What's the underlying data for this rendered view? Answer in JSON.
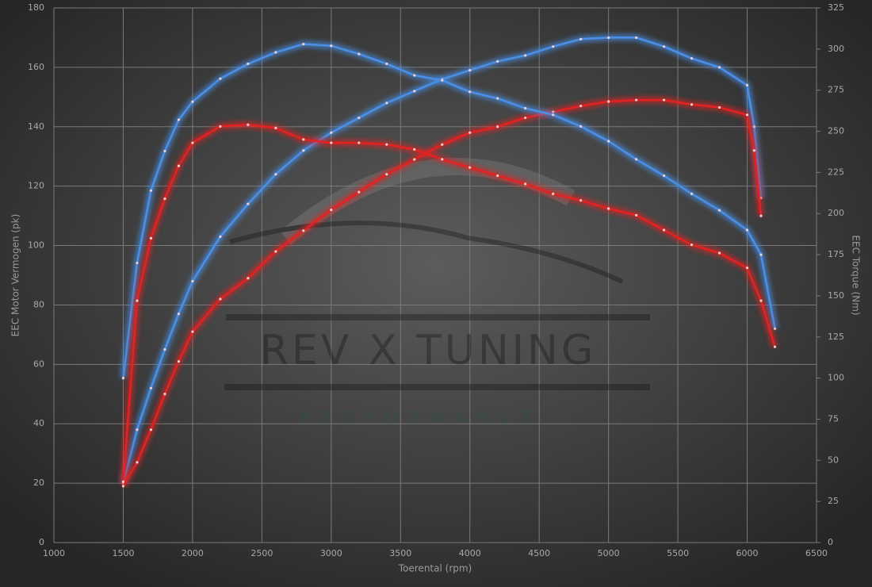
{
  "chart_data": {
    "type": "line",
    "xlabel": "Toerental (rpm)",
    "ylabel": "EEC Motor Vermogen (pk)",
    "y2label": "EEC Torque (Nm)",
    "watermark": {
      "text": "REV X TUNING",
      "subtext": "PERFORMANCE"
    },
    "xlim": [
      1000,
      6500
    ],
    "xticks": [
      1000,
      1500,
      2000,
      2500,
      3000,
      3500,
      4000,
      4500,
      5000,
      5500,
      6000,
      6500
    ],
    "ylim": [
      0,
      180
    ],
    "yticks": [
      0,
      20,
      40,
      60,
      80,
      100,
      120,
      140,
      160,
      180
    ],
    "y2lim": [
      0,
      325
    ],
    "y2ticks": [
      0,
      25,
      50,
      75,
      100,
      125,
      150,
      175,
      200,
      225,
      250,
      275,
      300,
      325
    ],
    "grid": true,
    "series": [
      {
        "color": "#4a90e8",
        "axis": "y",
        "x": [
          1500,
          1600,
          1700,
          1800,
          1900,
          2000,
          2200,
          2400,
          2600,
          2800,
          3000,
          3200,
          3400,
          3600,
          3800,
          4000,
          4200,
          4400,
          4600,
          4800,
          5000,
          5200,
          5400,
          5600,
          5800,
          6000,
          6050,
          6100
        ],
        "values": [
          20,
          38,
          52,
          65,
          77,
          88,
          103,
          114,
          124,
          132,
          138,
          143,
          148,
          152,
          156,
          159,
          162,
          164,
          167,
          169.5,
          170,
          170,
          167,
          163,
          160,
          154,
          140,
          116
        ]
      },
      {
        "color": "#e42222",
        "axis": "y",
        "x": [
          1500,
          1600,
          1700,
          1800,
          1900,
          2000,
          2200,
          2400,
          2600,
          2800,
          3000,
          3200,
          3400,
          3600,
          3800,
          4000,
          4200,
          4400,
          4600,
          4800,
          5000,
          5200,
          5400,
          5600,
          5800,
          6000,
          6050,
          6100
        ],
        "values": [
          19,
          27,
          38,
          50,
          61,
          71,
          82,
          89,
          98,
          105,
          112,
          118,
          124,
          129,
          134,
          138,
          140,
          143,
          145,
          147,
          148.5,
          149,
          149,
          147.5,
          146.5,
          144,
          132,
          110
        ]
      },
      {
        "color": "#4a90e8",
        "axis": "y2",
        "x": [
          1500,
          1600,
          1700,
          1800,
          1900,
          2000,
          2200,
          2400,
          2600,
          2800,
          3000,
          3200,
          3400,
          3600,
          3800,
          4000,
          4200,
          4400,
          4600,
          4800,
          5000,
          5200,
          5400,
          5600,
          5800,
          6000,
          6100,
          6200
        ],
        "values": [
          100,
          170,
          214,
          238,
          257,
          268,
          282,
          291,
          298,
          303,
          302,
          297,
          291,
          284,
          281,
          274,
          270,
          264,
          260,
          253,
          244,
          233,
          223,
          212,
          202,
          190,
          175,
          130
        ]
      },
      {
        "color": "#e42222",
        "axis": "y2",
        "x": [
          1500,
          1600,
          1700,
          1800,
          1900,
          2000,
          2200,
          2400,
          2600,
          2800,
          3000,
          3200,
          3400,
          3600,
          3800,
          4000,
          4200,
          4400,
          4600,
          4800,
          5000,
          5200,
          5400,
          5600,
          5800,
          6000,
          6100,
          6200
        ],
        "values": [
          37,
          147,
          185,
          209,
          229,
          243,
          253,
          254,
          252,
          245,
          243,
          243,
          242,
          239,
          233,
          228,
          223,
          218,
          212,
          208,
          203,
          199,
          190,
          181,
          176,
          167,
          147,
          119
        ]
      }
    ]
  }
}
